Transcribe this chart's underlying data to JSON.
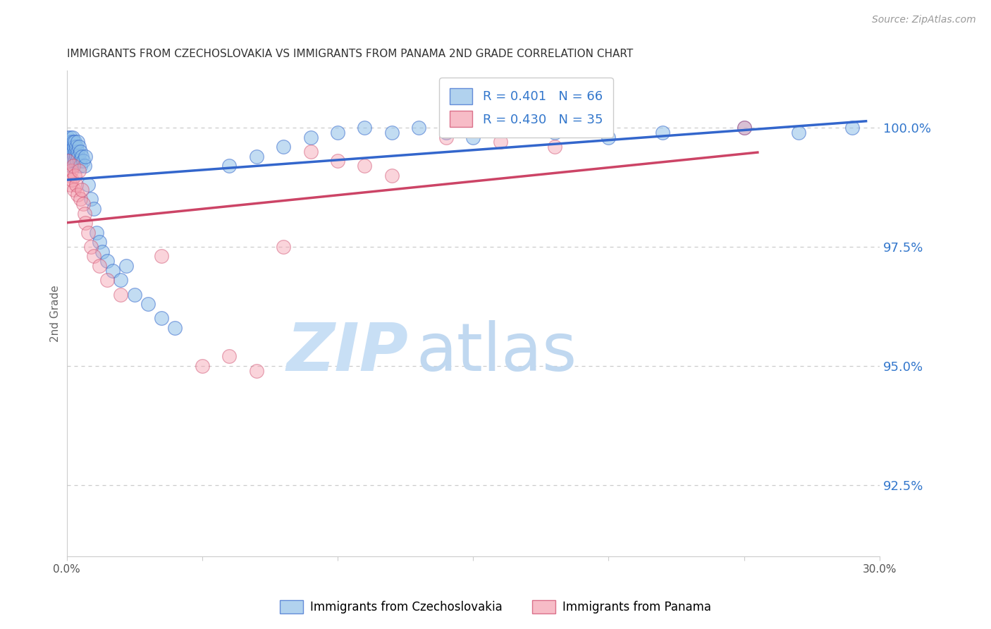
{
  "title": "IMMIGRANTS FROM CZECHOSLOVAKIA VS IMMIGRANTS FROM PANAMA 2ND GRADE CORRELATION CHART",
  "source": "Source: ZipAtlas.com",
  "ylabel": "2nd Grade",
  "legend1_label": "Immigrants from Czechoslovakia",
  "legend2_label": "Immigrants from Panama",
  "r1": 0.401,
  "n1": 66,
  "r2": 0.43,
  "n2": 35,
  "color_blue": "#90c0e8",
  "color_pink": "#f4a0b0",
  "line_color_blue": "#3366cc",
  "line_color_pink": "#cc4466",
  "background_color": "#ffffff",
  "grid_color": "#cccccc",
  "watermark_zip_color": "#c8dff5",
  "watermark_atlas_color": "#c0d8f0",
  "title_color": "#333333",
  "right_axis_color": "#3377cc",
  "source_color": "#999999",
  "xlim": [
    0.0,
    30.0
  ],
  "ylim": [
    91.0,
    101.2
  ],
  "ytick_values": [
    100.0,
    97.5,
    95.0,
    92.5
  ],
  "blue_x": [
    0.05,
    0.08,
    0.1,
    0.1,
    0.12,
    0.13,
    0.15,
    0.15,
    0.18,
    0.18,
    0.2,
    0.2,
    0.22,
    0.22,
    0.25,
    0.25,
    0.28,
    0.28,
    0.3,
    0.3,
    0.32,
    0.35,
    0.35,
    0.38,
    0.4,
    0.4,
    0.42,
    0.45,
    0.48,
    0.5,
    0.5,
    0.55,
    0.6,
    0.65,
    0.7,
    0.8,
    0.9,
    1.0,
    1.1,
    1.2,
    1.3,
    1.5,
    1.7,
    2.0,
    2.2,
    2.5,
    3.0,
    3.5,
    4.0,
    6.0,
    7.0,
    8.0,
    9.0,
    10.0,
    11.0,
    12.0,
    13.0,
    14.0,
    15.0,
    17.0,
    18.0,
    20.0,
    22.0,
    25.0,
    27.0,
    29.0
  ],
  "blue_y": [
    99.8,
    99.5,
    99.7,
    99.4,
    99.6,
    99.3,
    99.8,
    99.5,
    99.7,
    99.2,
    99.6,
    99.4,
    99.8,
    99.3,
    99.7,
    99.5,
    99.4,
    99.6,
    99.3,
    99.7,
    99.5,
    99.6,
    99.4,
    99.3,
    99.5,
    99.7,
    99.4,
    99.6,
    99.3,
    99.5,
    99.2,
    99.4,
    99.3,
    99.2,
    99.4,
    98.8,
    98.5,
    98.3,
    97.8,
    97.6,
    97.4,
    97.2,
    97.0,
    96.8,
    97.1,
    96.5,
    96.3,
    96.0,
    95.8,
    99.2,
    99.4,
    99.6,
    99.8,
    99.9,
    100.0,
    99.9,
    100.0,
    99.9,
    99.8,
    100.0,
    99.9,
    99.8,
    99.9,
    100.0,
    99.9,
    100.0
  ],
  "pink_x": [
    0.05,
    0.1,
    0.15,
    0.18,
    0.2,
    0.25,
    0.28,
    0.3,
    0.35,
    0.4,
    0.45,
    0.5,
    0.55,
    0.6,
    0.65,
    0.7,
    0.8,
    0.9,
    1.0,
    1.2,
    1.5,
    2.0,
    3.5,
    5.0,
    6.0,
    7.0,
    8.0,
    9.0,
    10.0,
    11.0,
    12.0,
    14.0,
    16.0,
    18.0,
    25.0
  ],
  "pink_y": [
    99.3,
    99.0,
    98.8,
    99.1,
    98.9,
    99.2,
    98.7,
    99.0,
    98.8,
    98.6,
    99.1,
    98.5,
    98.7,
    98.4,
    98.2,
    98.0,
    97.8,
    97.5,
    97.3,
    97.1,
    96.8,
    96.5,
    97.3,
    95.0,
    95.2,
    94.9,
    97.5,
    99.5,
    99.3,
    99.2,
    99.0,
    99.8,
    99.7,
    99.6,
    100.0
  ]
}
